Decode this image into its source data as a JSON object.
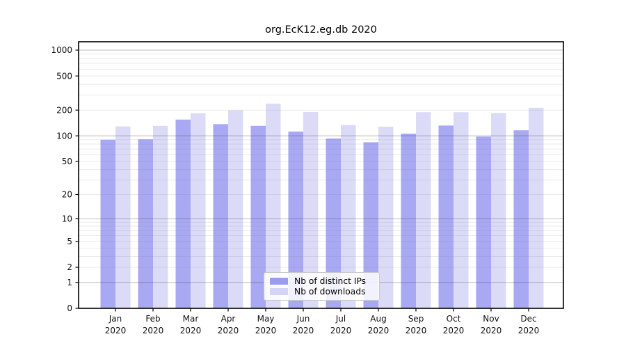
{
  "chart_data": {
    "type": "bar",
    "title": "org.EcK12.eg.db 2020",
    "categories": [
      "Jan",
      "Feb",
      "Mar",
      "Apr",
      "May",
      "Jun",
      "Jul",
      "Aug",
      "Sep",
      "Oct",
      "Nov",
      "Dec"
    ],
    "category_year": "2020",
    "series": [
      {
        "name": "Nb of distinct IPs",
        "color": "#a8a8f3",
        "legend_color": "#9c9cef",
        "values": [
          90,
          91,
          155,
          137,
          131,
          112,
          93,
          84,
          106,
          132,
          98,
          116
        ]
      },
      {
        "name": "Nb of downloads",
        "color": "#dbdbf8",
        "legend_color": "#d4d4f5",
        "values": [
          129,
          131,
          184,
          199,
          238,
          190,
          134,
          128,
          189,
          189,
          185,
          213
        ]
      }
    ],
    "yscale": "log1p",
    "yticks": [
      0,
      1,
      2,
      5,
      10,
      20,
      50,
      100,
      200,
      500,
      1000
    ],
    "ylim": [
      0,
      1250
    ],
    "grid": true,
    "grid_major_color": "#b7b7b7",
    "grid_minor_color": "#ebebeb",
    "legend_position": "lower center"
  }
}
